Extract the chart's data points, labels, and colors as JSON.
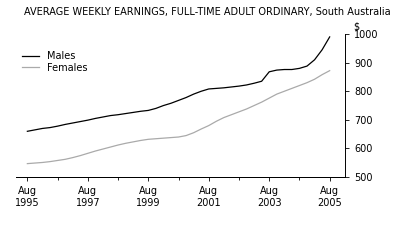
{
  "title": "AVERAGE WEEKLY EARNINGS, FULL-TIME ADULT ORDINARY, South Australia",
  "xlabel_unit": "$",
  "x_tick_labels": [
    "Aug\n1995",
    "Aug\n1997",
    "Aug\n1999",
    "Aug\n2001",
    "Aug\n2003",
    "Aug\n2005"
  ],
  "x_tick_positions": [
    1995.58,
    1997.58,
    1999.58,
    2001.58,
    2003.58,
    2005.58
  ],
  "x_minor_ticks": [
    1996.58,
    1998.58,
    2000.58,
    2002.58,
    2004.58
  ],
  "ylim": [
    500,
    1000
  ],
  "yticks": [
    500,
    600,
    700,
    800,
    900,
    1000
  ],
  "xlim": [
    1995.2,
    2006.1
  ],
  "males_x": [
    1995.58,
    1995.83,
    1996.08,
    1996.33,
    1996.58,
    1996.83,
    1997.08,
    1997.33,
    1997.58,
    1997.83,
    1998.08,
    1998.33,
    1998.58,
    1998.83,
    1999.08,
    1999.33,
    1999.58,
    1999.83,
    2000.08,
    2000.33,
    2000.58,
    2000.83,
    2001.08,
    2001.33,
    2001.58,
    2001.83,
    2002.08,
    2002.33,
    2002.58,
    2002.83,
    2003.08,
    2003.33,
    2003.58,
    2003.83,
    2004.08,
    2004.33,
    2004.58,
    2004.83,
    2005.08,
    2005.33,
    2005.58
  ],
  "males_y": [
    660,
    665,
    670,
    673,
    678,
    684,
    689,
    694,
    699,
    705,
    710,
    715,
    718,
    722,
    726,
    730,
    733,
    740,
    750,
    758,
    768,
    778,
    790,
    800,
    808,
    810,
    812,
    815,
    818,
    822,
    828,
    835,
    868,
    874,
    876,
    876,
    880,
    888,
    910,
    945,
    990
  ],
  "females_x": [
    1995.58,
    1995.83,
    1996.08,
    1996.33,
    1996.58,
    1996.83,
    1997.08,
    1997.33,
    1997.58,
    1997.83,
    1998.08,
    1998.33,
    1998.58,
    1998.83,
    1999.08,
    1999.33,
    1999.58,
    1999.83,
    2000.08,
    2000.33,
    2000.58,
    2000.83,
    2001.08,
    2001.33,
    2001.58,
    2001.83,
    2002.08,
    2002.33,
    2002.58,
    2002.83,
    2003.08,
    2003.33,
    2003.58,
    2003.83,
    2004.08,
    2004.33,
    2004.58,
    2004.83,
    2005.08,
    2005.33,
    2005.58
  ],
  "females_y": [
    547,
    549,
    551,
    554,
    558,
    562,
    568,
    575,
    583,
    591,
    598,
    605,
    612,
    618,
    623,
    628,
    632,
    634,
    636,
    638,
    640,
    645,
    655,
    668,
    680,
    695,
    708,
    718,
    728,
    738,
    750,
    762,
    776,
    790,
    800,
    810,
    820,
    830,
    842,
    858,
    872
  ],
  "males_color": "#000000",
  "females_color": "#aaaaaa",
  "background_color": "#ffffff",
  "legend_males": "Males",
  "legend_females": "Females",
  "title_fontsize": 7.0,
  "axis_fontsize": 7.0,
  "legend_fontsize": 7.0
}
